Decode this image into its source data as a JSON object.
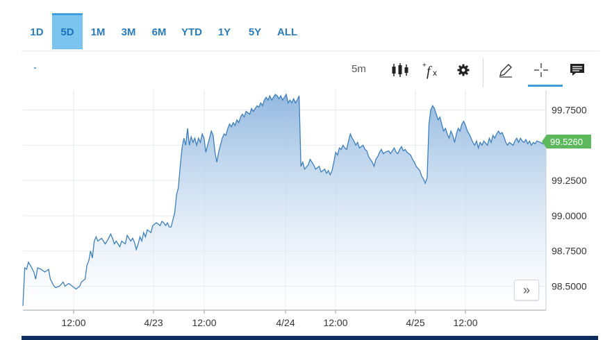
{
  "range_tabs": [
    "1D",
    "5D",
    "1M",
    "3M",
    "6M",
    "YTD",
    "1Y",
    "5Y",
    "ALL"
  ],
  "active_range": "5D",
  "toolbar": {
    "interval": "5m",
    "icons": [
      "candlestick-icon",
      "function-fx-icon",
      "gear-icon",
      "pencil-icon",
      "crosshair-icon",
      "comment-icon"
    ]
  },
  "scroll_label": "»",
  "colors": {
    "line": "#3d7eb9",
    "accent": "#5cb85c",
    "active_tab": "#7cc4f0",
    "bottom_bar": "#0d2e5e"
  },
  "chart_data": {
    "type": "area",
    "ylim": [
      98.33,
      99.89
    ],
    "y_ticks": [
      "99.7500",
      "99.2500",
      "99.0000",
      "98.7500",
      "98.5000"
    ],
    "x_ticks": [
      "12:00",
      "4/23",
      "12:00",
      "4/24",
      "12:00",
      "4/25",
      "12:00"
    ],
    "last_value": "99.5260",
    "grid": true,
    "series": [
      {
        "values": [
          [
            0,
            98.36
          ],
          [
            1,
            98.63
          ],
          [
            2,
            98.62
          ],
          [
            3,
            98.67
          ],
          [
            4,
            98.65
          ],
          [
            6,
            98.6
          ],
          [
            7,
            98.55
          ],
          [
            8,
            98.63
          ],
          [
            10,
            98.62
          ],
          [
            12,
            98.6
          ],
          [
            14,
            98.62
          ],
          [
            15,
            98.55
          ],
          [
            17,
            98.5
          ],
          [
            18,
            98.49
          ],
          [
            20,
            98.5
          ],
          [
            22,
            98.53
          ],
          [
            23,
            98.5
          ],
          [
            25,
            98.52
          ],
          [
            27,
            98.5
          ],
          [
            29,
            98.48
          ],
          [
            31,
            98.5
          ],
          [
            32,
            98.53
          ],
          [
            34,
            98.55
          ],
          [
            35,
            98.65
          ],
          [
            36,
            98.68
          ],
          [
            37,
            98.75
          ],
          [
            38,
            98.7
          ],
          [
            39,
            98.82
          ],
          [
            40,
            98.85
          ],
          [
            41,
            98.82
          ],
          [
            43,
            98.84
          ],
          [
            45,
            98.8
          ],
          [
            46,
            98.82
          ],
          [
            48,
            98.87
          ],
          [
            49,
            98.84
          ],
          [
            50,
            98.8
          ],
          [
            51,
            98.82
          ],
          [
            53,
            98.78
          ],
          [
            54,
            98.82
          ],
          [
            56,
            98.8
          ],
          [
            57,
            98.86
          ],
          [
            59,
            98.82
          ],
          [
            60,
            98.84
          ],
          [
            61,
            98.81
          ],
          [
            62,
            98.76
          ],
          [
            63,
            98.8
          ],
          [
            64,
            98.85
          ],
          [
            65,
            98.82
          ],
          [
            66,
            98.88
          ],
          [
            67,
            98.85
          ],
          [
            68,
            98.9
          ],
          [
            70,
            98.88
          ],
          [
            71,
            98.93
          ],
          [
            73,
            98.95
          ],
          [
            75,
            98.93
          ],
          [
            76,
            98.96
          ],
          [
            77,
            98.95
          ],
          [
            78,
            98.93
          ],
          [
            79,
            98.95
          ],
          [
            80,
            98.92
          ],
          [
            81,
            98.92
          ],
          [
            82,
            98.97
          ],
          [
            83,
            99.02
          ],
          [
            84,
            99.15
          ],
          [
            85,
            99.2
          ],
          [
            86,
            99.35
          ],
          [
            87,
            99.48
          ],
          [
            88,
            99.55
          ],
          [
            89,
            99.5
          ],
          [
            90,
            99.62
          ],
          [
            91,
            99.5
          ],
          [
            92,
            99.56
          ],
          [
            93,
            99.52
          ],
          [
            94,
            99.55
          ],
          [
            95,
            99.5
          ],
          [
            96,
            99.55
          ],
          [
            97,
            99.52
          ],
          [
            98,
            99.58
          ],
          [
            99,
            99.55
          ],
          [
            100,
            99.45
          ],
          [
            101,
            99.5
          ],
          [
            102,
            99.55
          ],
          [
            103,
            99.6
          ],
          [
            104,
            99.57
          ],
          [
            105,
            99.45
          ],
          [
            106,
            99.38
          ],
          [
            107,
            99.45
          ],
          [
            108,
            99.5
          ],
          [
            109,
            99.55
          ],
          [
            110,
            99.58
          ],
          [
            111,
            99.57
          ],
          [
            112,
            99.62
          ],
          [
            113,
            99.65
          ],
          [
            114,
            99.63
          ],
          [
            115,
            99.66
          ],
          [
            116,
            99.64
          ],
          [
            117,
            99.68
          ],
          [
            118,
            99.66
          ],
          [
            119,
            99.7
          ],
          [
            120,
            99.72
          ],
          [
            121,
            99.7
          ],
          [
            122,
            99.74
          ],
          [
            124,
            99.72
          ],
          [
            125,
            99.76
          ],
          [
            126,
            99.74
          ],
          [
            128,
            99.78
          ],
          [
            129,
            99.77
          ],
          [
            130,
            99.8
          ],
          [
            131,
            99.78
          ],
          [
            132,
            99.82
          ],
          [
            133,
            99.84
          ],
          [
            134,
            99.82
          ],
          [
            135,
            99.85
          ],
          [
            136,
            99.82
          ],
          [
            137,
            99.84
          ],
          [
            138,
            99.86
          ],
          [
            139,
            99.85
          ],
          [
            140,
            99.83
          ],
          [
            141,
            99.85
          ],
          [
            142,
            99.82
          ],
          [
            143,
            99.84
          ],
          [
            144,
            99.86
          ],
          [
            145,
            99.8
          ],
          [
            146,
            99.82
          ],
          [
            147,
            99.8
          ],
          [
            148,
            99.83
          ],
          [
            149,
            99.8
          ],
          [
            150,
            99.82
          ],
          [
            151,
            99.85
          ],
          [
            152,
            99.35
          ],
          [
            153,
            99.38
          ],
          [
            154,
            99.33
          ],
          [
            156,
            99.36
          ],
          [
            157,
            99.4
          ],
          [
            158,
            99.38
          ],
          [
            159,
            99.36
          ],
          [
            160,
            99.33
          ],
          [
            162,
            99.35
          ],
          [
            163,
            99.31
          ],
          [
            165,
            99.33
          ],
          [
            166,
            99.3
          ],
          [
            167,
            99.32
          ],
          [
            168,
            99.29
          ],
          [
            169,
            99.32
          ],
          [
            170,
            99.38
          ],
          [
            171,
            99.45
          ],
          [
            172,
            99.43
          ],
          [
            173,
            99.48
          ],
          [
            174,
            99.47
          ],
          [
            175,
            99.5
          ],
          [
            176,
            99.48
          ],
          [
            177,
            99.47
          ],
          [
            178,
            99.53
          ],
          [
            179,
            99.58
          ],
          [
            180,
            99.55
          ],
          [
            181,
            99.53
          ],
          [
            182,
            99.5
          ],
          [
            183,
            99.52
          ],
          [
            184,
            99.48
          ],
          [
            186,
            99.5
          ],
          [
            187,
            99.47
          ],
          [
            188,
            99.46
          ],
          [
            189,
            99.42
          ],
          [
            190,
            99.4
          ],
          [
            191,
            99.38
          ],
          [
            192,
            99.35
          ],
          [
            193,
            99.4
          ],
          [
            194,
            99.42
          ],
          [
            195,
            99.45
          ],
          [
            196,
            99.47
          ],
          [
            197,
            99.44
          ],
          [
            198,
            99.45
          ],
          [
            200,
            99.46
          ],
          [
            201,
            99.44
          ],
          [
            202,
            99.46
          ],
          [
            203,
            99.48
          ],
          [
            204,
            99.45
          ],
          [
            205,
            99.44
          ],
          [
            206,
            99.47
          ],
          [
            207,
            99.49
          ],
          [
            208,
            99.46
          ],
          [
            209,
            99.47
          ],
          [
            210,
            99.45
          ],
          [
            212,
            99.43
          ],
          [
            213,
            99.4
          ],
          [
            214,
            99.38
          ],
          [
            215,
            99.35
          ],
          [
            217,
            99.32
          ],
          [
            218,
            99.28
          ],
          [
            219,
            99.26
          ],
          [
            220,
            99.23
          ],
          [
            221,
            99.27
          ],
          [
            222,
            99.65
          ],
          [
            223,
            99.75
          ],
          [
            224,
            99.78
          ],
          [
            225,
            99.76
          ],
          [
            226,
            99.72
          ],
          [
            227,
            99.68
          ],
          [
            228,
            99.7
          ],
          [
            229,
            99.65
          ],
          [
            230,
            99.6
          ],
          [
            231,
            99.62
          ],
          [
            232,
            99.58
          ],
          [
            233,
            99.55
          ],
          [
            234,
            99.6
          ],
          [
            235,
            99.57
          ],
          [
            236,
            99.52
          ],
          [
            237,
            99.58
          ],
          [
            238,
            99.62
          ],
          [
            239,
            99.6
          ],
          [
            240,
            99.65
          ],
          [
            241,
            99.67
          ],
          [
            242,
            99.64
          ],
          [
            243,
            99.6
          ],
          [
            244,
            99.58
          ],
          [
            245,
            99.55
          ],
          [
            246,
            99.52
          ],
          [
            247,
            99.5
          ],
          [
            248,
            99.53
          ],
          [
            249,
            99.48
          ],
          [
            250,
            99.52
          ],
          [
            251,
            99.5
          ],
          [
            252,
            99.53
          ],
          [
            254,
            99.5
          ],
          [
            255,
            99.55
          ],
          [
            256,
            99.52
          ],
          [
            257,
            99.57
          ],
          [
            258,
            99.55
          ],
          [
            259,
            99.58
          ],
          [
            260,
            99.6
          ],
          [
            261,
            99.58
          ],
          [
            262,
            99.59
          ],
          [
            263,
            99.56
          ],
          [
            264,
            99.52
          ],
          [
            265,
            99.5
          ],
          [
            266,
            99.52
          ],
          [
            268,
            99.5
          ],
          [
            269,
            99.53
          ],
          [
            270,
            99.55
          ],
          [
            271,
            99.52
          ],
          [
            272,
            99.55
          ],
          [
            273,
            99.53
          ],
          [
            274,
            99.52
          ],
          [
            275,
            99.54
          ],
          [
            276,
            99.51
          ],
          [
            277,
            99.53
          ],
          [
            278,
            99.5
          ],
          [
            279,
            99.52
          ],
          [
            280,
            99.51
          ],
          [
            281,
            99.53
          ],
          [
            283,
            99.52
          ],
          [
            284,
            99.51
          ],
          [
            285,
            99.53
          ],
          [
            286,
            99.526
          ]
        ]
      }
    ]
  }
}
